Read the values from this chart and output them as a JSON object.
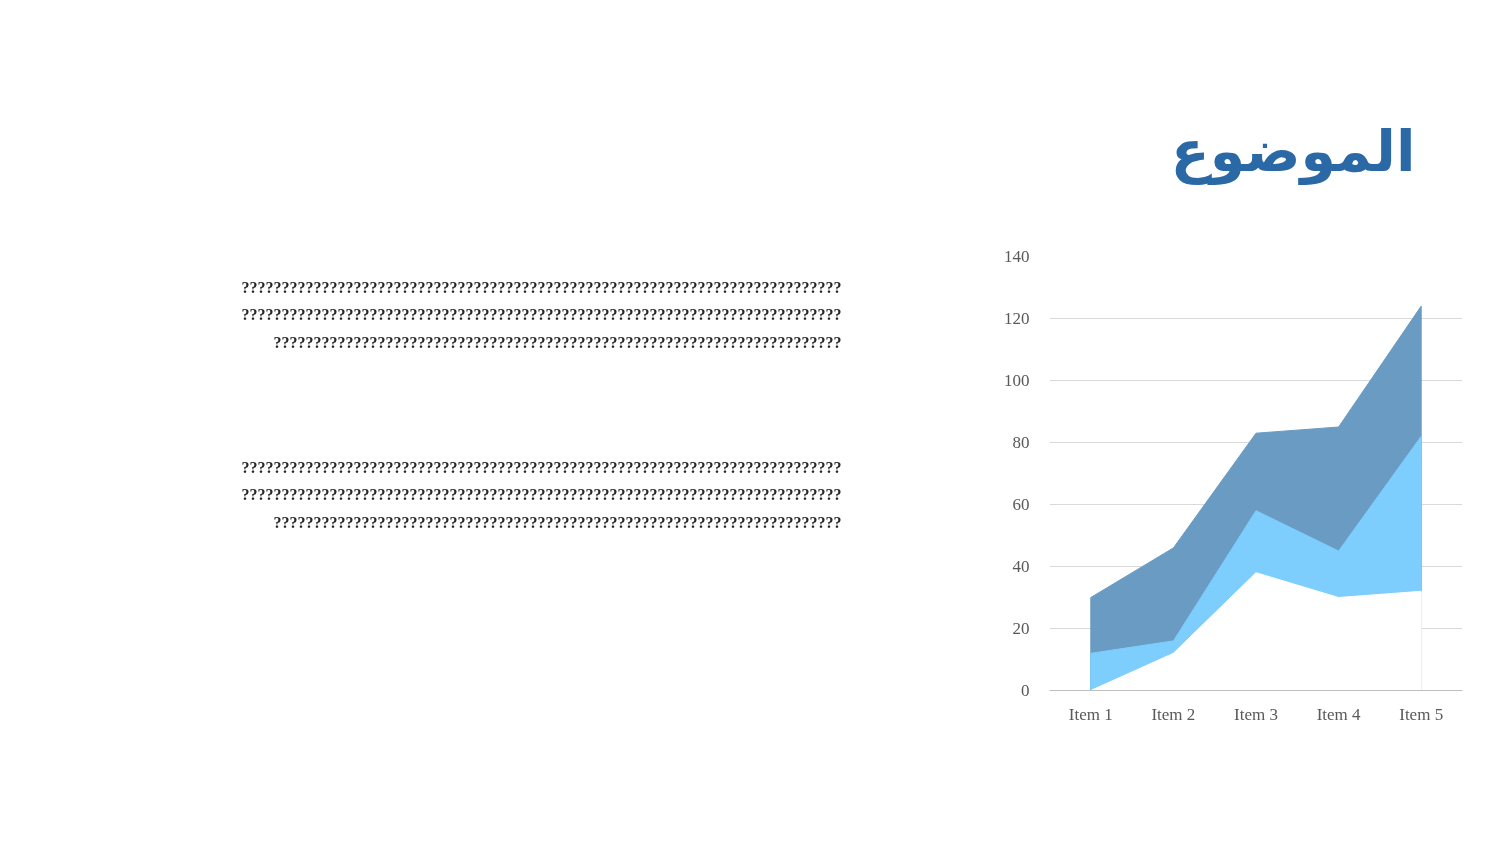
{
  "chart_data": {
    "type": "area",
    "title": "الموضوع",
    "categories": [
      "Item 1",
      "Item 2",
      "Item 3",
      "Item 4",
      "Item 5"
    ],
    "series": [
      {
        "color": "#6a9bc3",
        "values": [
          30,
          46,
          83,
          85,
          124
        ]
      },
      {
        "color": "#7dcdfd",
        "values": [
          12,
          16,
          58,
          45,
          82
        ]
      },
      {
        "color": "#ffffff",
        "values": [
          0,
          12,
          38,
          30,
          32
        ]
      }
    ],
    "ylim": [
      0,
      140
    ],
    "yticks": [
      0,
      20,
      40,
      60,
      80,
      100,
      120,
      140
    ],
    "grid": "y",
    "annotations": [
      "???????????????????????????????????????????????????????????????????????????\n???????????????????????????????????????????????????????????????????????????\n???????????????????????????????????????????????????????????????????????",
      "???????????????????????????????????????????????????????????????????????????\n???????????????????????????????????????????????????????????????????????????\n???????????????????????????????????????????????????????????????????????"
    ]
  }
}
